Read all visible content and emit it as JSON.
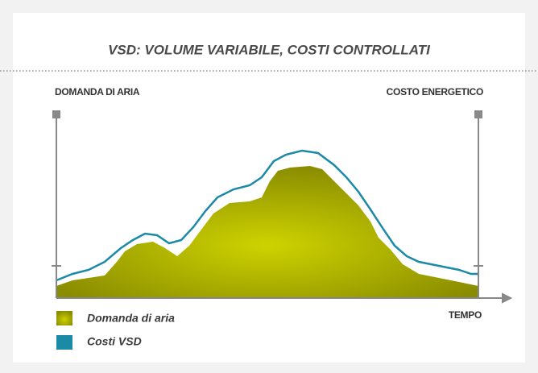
{
  "title": "VSD: VOLUME VARIABILE, COSTI CONTROLLATI",
  "left_axis_label": "DOMANDA DI ARIA",
  "right_axis_label": "COSTO ENERGETICO",
  "x_axis_label": "TEMPO",
  "legend": [
    {
      "label": "Domanda di aria"
    },
    {
      "label": "Costi VSD"
    }
  ]
}
